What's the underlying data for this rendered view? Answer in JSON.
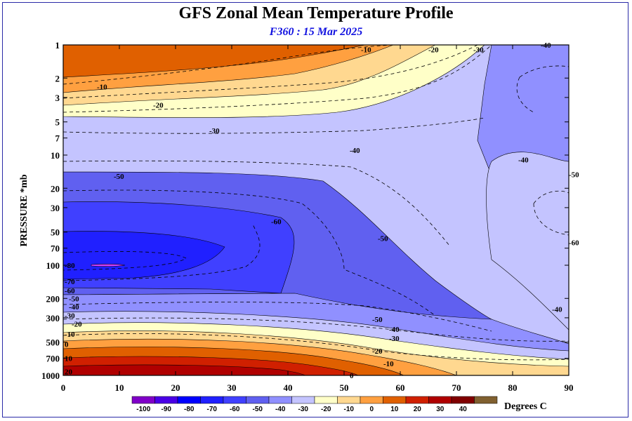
{
  "chart_data": {
    "type": "heatmap",
    "title": "GFS Zonal Mean Temperature Profile",
    "subtitle": "F360 : 15 Mar 2025",
    "ylabel": "PRESSURE *mb",
    "xlim": [
      0,
      90
    ],
    "ylim": [
      1000,
      1
    ],
    "y_scale": "log",
    "x_ticks": [
      0,
      10,
      20,
      30,
      40,
      50,
      60,
      70,
      80,
      90
    ],
    "y_ticks": [
      1,
      2,
      3,
      5,
      7,
      10,
      20,
      30,
      50,
      70,
      100,
      200,
      300,
      500,
      700,
      1000
    ],
    "colorbar": {
      "levels": [
        -100,
        -90,
        -80,
        -70,
        -60,
        -50,
        -40,
        -30,
        -20,
        -10,
        0,
        10,
        20,
        30,
        40
      ],
      "colors": [
        "#8000c8",
        "#4a00e6",
        "#0000ff",
        "#2020ff",
        "#4040ff",
        "#6060f0",
        "#9090ff",
        "#c4c4ff",
        "#ffffc8",
        "#ffd890",
        "#ffa040",
        "#e06000",
        "#d02000",
        "#b00000",
        "#800000",
        "#806030"
      ],
      "unit": "Degrees C"
    },
    "contour_labels": [
      {
        "text": "-10",
        "lat": 6,
        "p": 2.4
      },
      {
        "text": "-10",
        "lat": 53,
        "p": 1.1
      },
      {
        "text": "-20",
        "lat": 16,
        "p": 3.5
      },
      {
        "text": "-20",
        "lat": 65,
        "p": 1.1
      },
      {
        "text": "-30",
        "lat": 26,
        "p": 6.0
      },
      {
        "text": "-30",
        "lat": 73,
        "p": 1.1
      },
      {
        "text": "-40",
        "lat": 85,
        "p": 1.0
      },
      {
        "text": "-40",
        "lat": 51,
        "p": 9.0
      },
      {
        "text": "-40",
        "lat": 81,
        "p": 11.0
      },
      {
        "text": "-50",
        "lat": 9,
        "p": 15.5
      },
      {
        "text": "-50",
        "lat": 90,
        "p": 15.0
      },
      {
        "text": "-60",
        "lat": 37,
        "p": 40.0
      },
      {
        "text": "-60",
        "lat": 90,
        "p": 62.0
      },
      {
        "text": "-50",
        "lat": 56,
        "p": 57.0
      },
      {
        "text": "-80",
        "lat": 0,
        "p": 100.0
      },
      {
        "text": "-70",
        "lat": 0,
        "p": 140.0
      },
      {
        "text": "-60",
        "lat": -0.5,
        "p": 170.0
      },
      {
        "text": "-50",
        "lat": 1,
        "p": 200.0
      },
      {
        "text": "-40",
        "lat": 1,
        "p": 237.0
      },
      {
        "text": "-30",
        "lat": 0,
        "p": 285.0
      },
      {
        "text": "-20",
        "lat": 1.5,
        "p": 340.0
      },
      {
        "text": "-10",
        "lat": 0,
        "p": 420.0
      },
      {
        "text": "0",
        "lat": -1.5,
        "p": 520.0
      },
      {
        "text": "10",
        "lat": -1.5,
        "p": 700.0
      },
      {
        "text": "20",
        "lat": -1.5,
        "p": 920.0
      },
      {
        "text": "-50",
        "lat": 55,
        "p": 310.0
      },
      {
        "text": "-40",
        "lat": 58,
        "p": 380.0
      },
      {
        "text": "-30",
        "lat": 58,
        "p": 460.0
      },
      {
        "text": "-20",
        "lat": 55,
        "p": 600.0
      },
      {
        "text": "-10",
        "lat": 57,
        "p": 780.0
      },
      {
        "text": "0",
        "lat": 51,
        "p": 1000.0
      },
      {
        "text": "-40",
        "lat": 87,
        "p": 250.0
      }
    ]
  }
}
